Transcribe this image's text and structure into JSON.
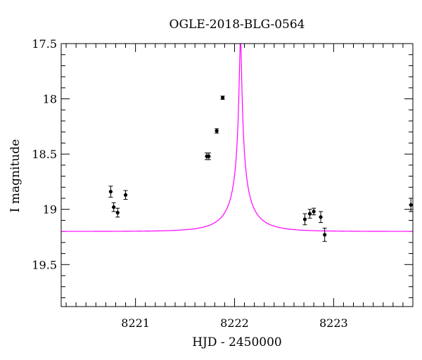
{
  "chart_data": {
    "type": "scatter",
    "title": "OGLE-2018-BLG-0564",
    "xlabel": "HJD - 2450000",
    "ylabel": "I magnitude",
    "xlim": [
      8220.25,
      8223.8
    ],
    "ylim": [
      19.88,
      17.5
    ],
    "y_inverted": true,
    "x_ticks": [
      8221,
      8222,
      8223
    ],
    "x_tick_labels": [
      "8221",
      "8222",
      "8223"
    ],
    "y_ticks": [
      17.5,
      18,
      18.5,
      19,
      19.5
    ],
    "y_tick_labels": [
      "17.5",
      "18",
      "18.5",
      "19",
      "19.5"
    ],
    "grid": false,
    "series": [
      {
        "kind": "points",
        "color": "#000000",
        "points": [
          {
            "x": 8220.75,
            "y": 18.84,
            "err": 0.05
          },
          {
            "x": 8220.78,
            "y": 18.98,
            "err": 0.04
          },
          {
            "x": 8220.82,
            "y": 19.03,
            "err": 0.04
          },
          {
            "x": 8220.9,
            "y": 18.87,
            "err": 0.04
          },
          {
            "x": 8221.72,
            "y": 18.52,
            "err": 0.03
          },
          {
            "x": 8221.74,
            "y": 18.52,
            "err": 0.03
          },
          {
            "x": 8221.82,
            "y": 18.29,
            "err": 0.02
          },
          {
            "x": 8221.88,
            "y": 17.99,
            "err": 0.015
          },
          {
            "x": 8222.71,
            "y": 19.09,
            "err": 0.05
          },
          {
            "x": 8222.76,
            "y": 19.04,
            "err": 0.04
          },
          {
            "x": 8222.8,
            "y": 19.02,
            "err": 0.03
          },
          {
            "x": 8222.87,
            "y": 19.07,
            "err": 0.05
          },
          {
            "x": 8222.91,
            "y": 19.23,
            "err": 0.06
          },
          {
            "x": 8223.78,
            "y": 18.96,
            "err": 0.06
          }
        ]
      },
      {
        "kind": "model_curve",
        "color": "#ff00ff",
        "t0": 8222.06,
        "tE": 0.35,
        "u0": 0.03,
        "baseline": 19.2,
        "peak_mag": 17.45
      }
    ]
  }
}
